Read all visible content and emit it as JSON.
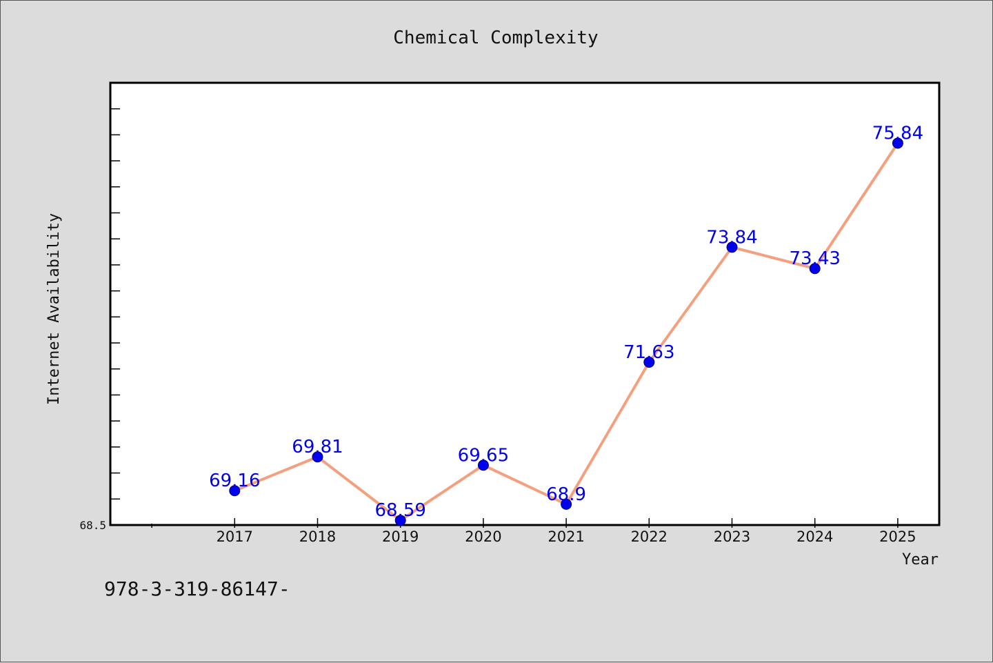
{
  "chart_data": {
    "type": "line",
    "title": "Chemical Complexity",
    "xlabel": "Year",
    "ylabel": "Internet Availability",
    "x": [
      "2017",
      "2018",
      "2019",
      "2020",
      "2021",
      "2022",
      "2023",
      "2024",
      "2025"
    ],
    "series": [
      {
        "values": [
          69.16,
          69.81,
          68.59,
          69.65,
          68.9,
          71.63,
          73.84,
          73.43,
          75.84
        ],
        "labels": [
          "69.16",
          "69.81",
          "68.59",
          "69.65",
          "68.9",
          "71.63",
          "73.84",
          "73.43",
          "75.84"
        ]
      }
    ],
    "xlim": [
      "2015.5",
      "2025.5"
    ],
    "ylim": [
      68.5,
      77.0
    ],
    "ytick_labels": [
      "68.5"
    ],
    "grid": false,
    "legend": "none",
    "colors": {
      "line": "#f4a07f",
      "marker": "#0000ee",
      "data_label": "#0000ee",
      "plot_bg": "#ffffff",
      "figure_bg": "#dcdcdc"
    }
  },
  "footnote": "978-3-319-86147-"
}
